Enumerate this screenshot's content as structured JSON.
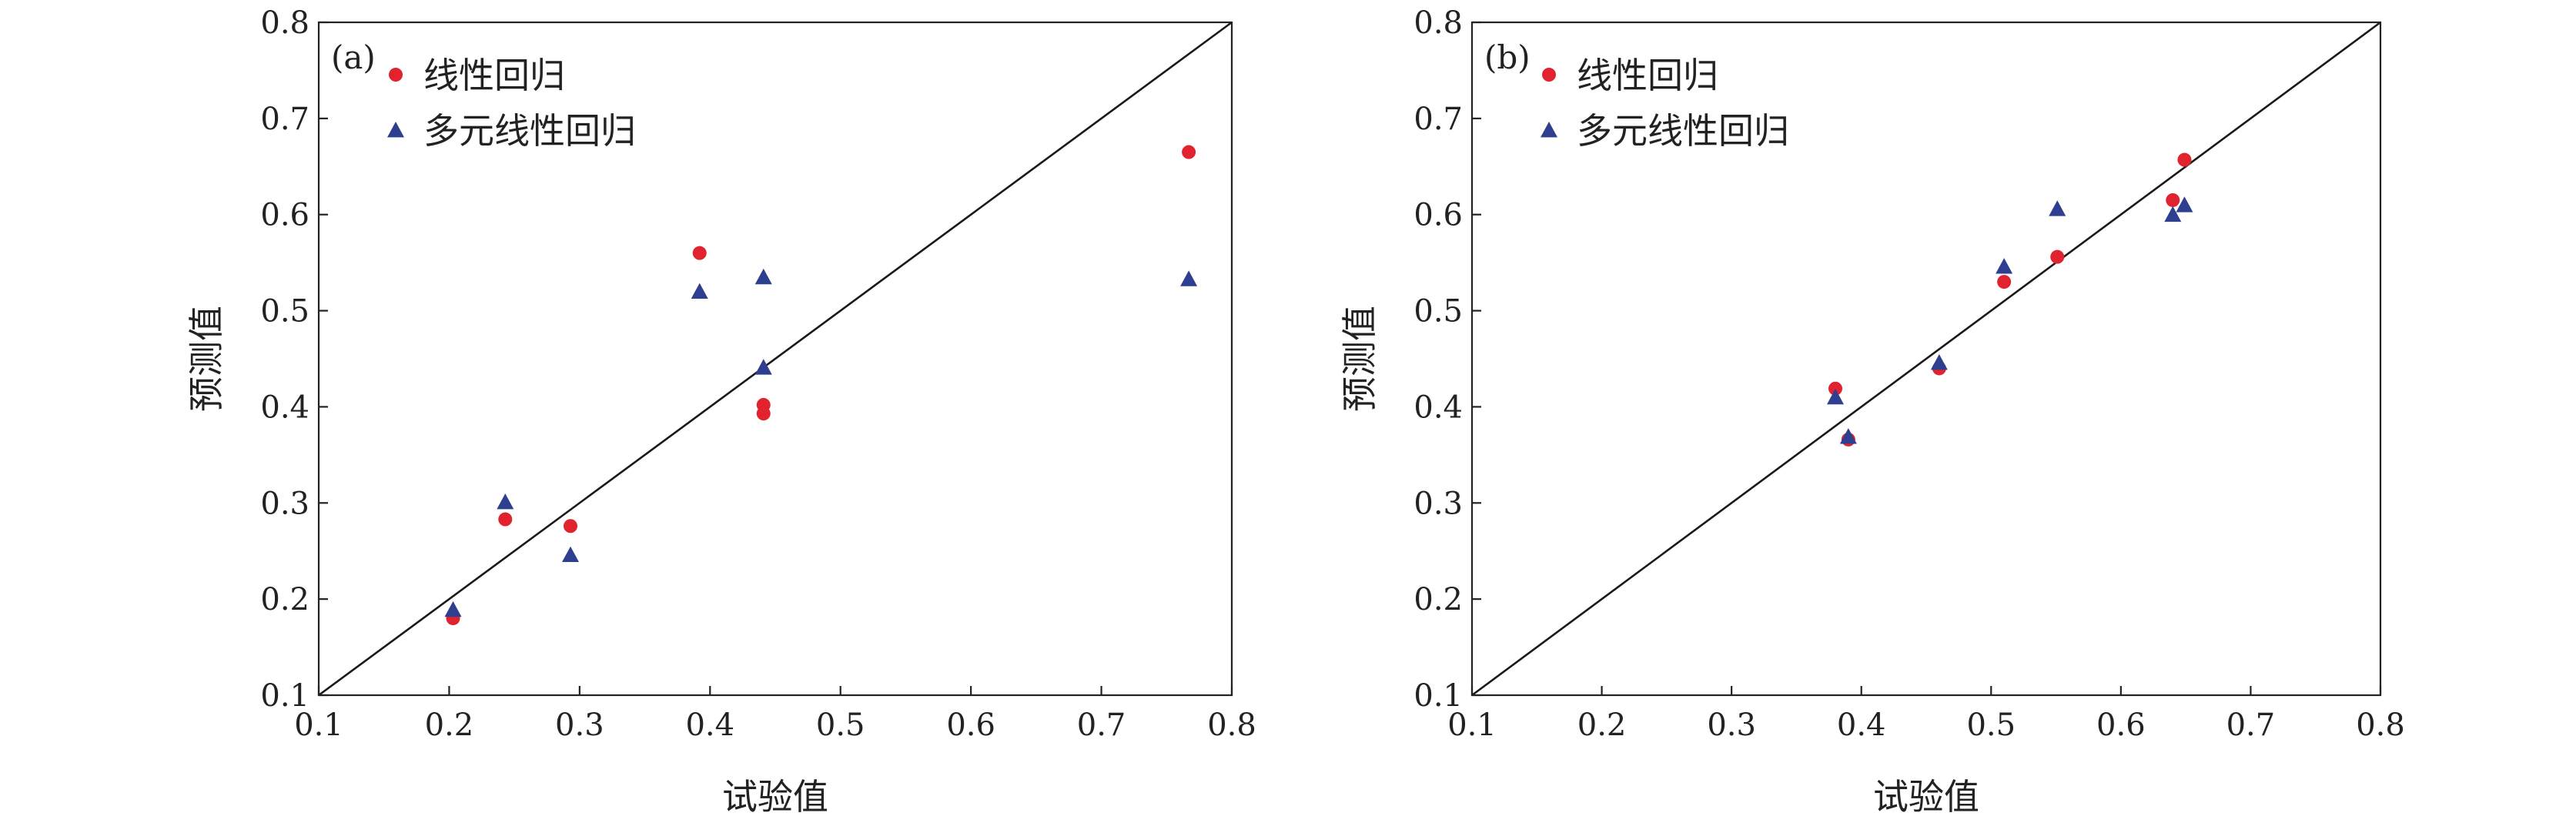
{
  "chart_data": [
    {
      "type": "scatter",
      "panel_label": "(a)",
      "xlabel": "试验值",
      "ylabel": "预测值",
      "xlim": [
        0.1,
        0.8
      ],
      "ylim": [
        0.1,
        0.8
      ],
      "xticks": [
        "0.1",
        "0.2",
        "0.3",
        "0.4",
        "0.5",
        "0.6",
        "0.7",
        "0.8"
      ],
      "yticks": [
        "0.1",
        "0.2",
        "0.3",
        "0.4",
        "0.5",
        "0.6",
        "0.7",
        "0.8"
      ],
      "grid": false,
      "reference_line": "y = x",
      "legend_position": "top-left",
      "series": [
        {
          "name": "线性回归",
          "marker": "circle",
          "color": "#e0232e",
          "points": [
            [
              0.203,
              0.18
            ],
            [
              0.243,
              0.283
            ],
            [
              0.293,
              0.276
            ],
            [
              0.392,
              0.56
            ],
            [
              0.441,
              0.402
            ],
            [
              0.441,
              0.393
            ],
            [
              0.767,
              0.665
            ]
          ]
        },
        {
          "name": "多元线性回归",
          "marker": "triangle",
          "color": "#2f3f8f",
          "points": [
            [
              0.203,
              0.189
            ],
            [
              0.243,
              0.301
            ],
            [
              0.293,
              0.246
            ],
            [
              0.392,
              0.52
            ],
            [
              0.441,
              0.535
            ],
            [
              0.441,
              0.441
            ],
            [
              0.767,
              0.533
            ]
          ]
        }
      ]
    },
    {
      "type": "scatter",
      "panel_label": "(b)",
      "xlabel": "试验值",
      "ylabel": "预测值",
      "xlim": [
        0.1,
        0.8
      ],
      "ylim": [
        0.1,
        0.8
      ],
      "xticks": [
        "0.1",
        "0.2",
        "0.3",
        "0.4",
        "0.5",
        "0.6",
        "0.7",
        "0.8"
      ],
      "yticks": [
        "0.1",
        "0.2",
        "0.3",
        "0.4",
        "0.5",
        "0.6",
        "0.7",
        "0.8"
      ],
      "grid": false,
      "reference_line": "y = x",
      "legend_position": "top-left",
      "series": [
        {
          "name": "线性回归",
          "marker": "circle",
          "color": "#e0232e",
          "points": [
            [
              0.38,
              0.419
            ],
            [
              0.39,
              0.366
            ],
            [
              0.46,
              0.44
            ],
            [
              0.51,
              0.53
            ],
            [
              0.551,
              0.556
            ],
            [
              0.64,
              0.615
            ],
            [
              0.649,
              0.657
            ]
          ]
        },
        {
          "name": "多元线性回归",
          "marker": "triangle",
          "color": "#2f3f8f",
          "points": [
            [
              0.38,
              0.41
            ],
            [
              0.39,
              0.369
            ],
            [
              0.46,
              0.446
            ],
            [
              0.51,
              0.546
            ],
            [
              0.551,
              0.606
            ],
            [
              0.64,
              0.6
            ],
            [
              0.649,
              0.61
            ]
          ]
        }
      ]
    }
  ]
}
